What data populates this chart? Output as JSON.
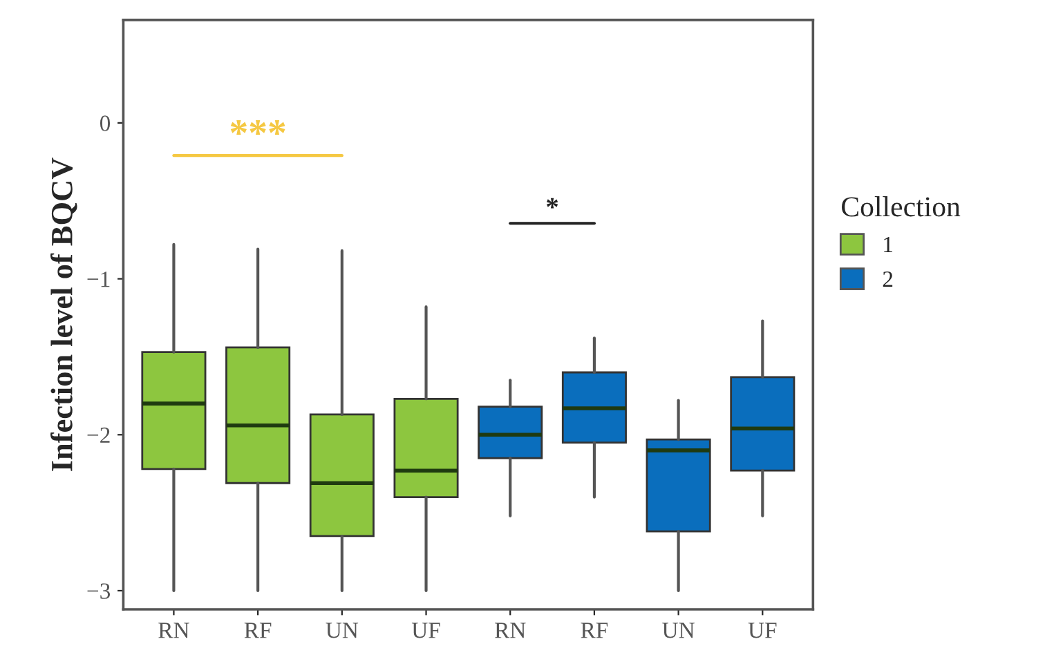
{
  "chart_data": {
    "type": "box",
    "ylabel": "Infection level of BQCV",
    "legend_title": "Collection",
    "legend": "right",
    "grid": false,
    "categories": [
      "RN",
      "RF",
      "UN",
      "UF",
      "RN",
      "RF",
      "UN",
      "UF"
    ],
    "ylim": [
      -3.12,
      0.66
    ],
    "yticks": [
      0,
      {
        "value": -1,
        "label": "−1"
      },
      {
        "value": -2,
        "label": "−2"
      },
      {
        "value": -3,
        "label": "−3"
      }
    ],
    "series": [
      {
        "name": "1",
        "color": "#8dc63f",
        "boxes": [
          {
            "low": -3.0,
            "q1": -2.22,
            "median": -1.8,
            "q3": -1.47,
            "high": -0.78
          },
          {
            "low": -3.0,
            "q1": -2.31,
            "median": -1.94,
            "q3": -1.44,
            "high": -0.81
          },
          {
            "low": -3.0,
            "q1": -2.65,
            "median": -2.31,
            "q3": -1.87,
            "high": -0.82
          },
          {
            "low": -3.0,
            "q1": -2.4,
            "median": -2.23,
            "q3": -1.77,
            "high": -1.18
          },
          null,
          null,
          null,
          null
        ]
      },
      {
        "name": "2",
        "color": "#0a6ebd",
        "boxes": [
          null,
          null,
          null,
          null,
          {
            "low": -2.52,
            "q1": -2.15,
            "median": -2.0,
            "q3": -1.82,
            "high": -1.65
          },
          {
            "low": -2.4,
            "q1": -2.05,
            "median": -1.83,
            "q3": -1.6,
            "high": -1.38
          },
          {
            "low": -3.0,
            "q1": -2.62,
            "median": -2.1,
            "q3": -2.03,
            "high": -1.78
          },
          {
            "low": -2.52,
            "q1": -2.23,
            "median": -1.96,
            "q3": -1.63,
            "high": -1.27
          }
        ]
      }
    ],
    "annotations": [
      "***",
      "*"
    ]
  }
}
